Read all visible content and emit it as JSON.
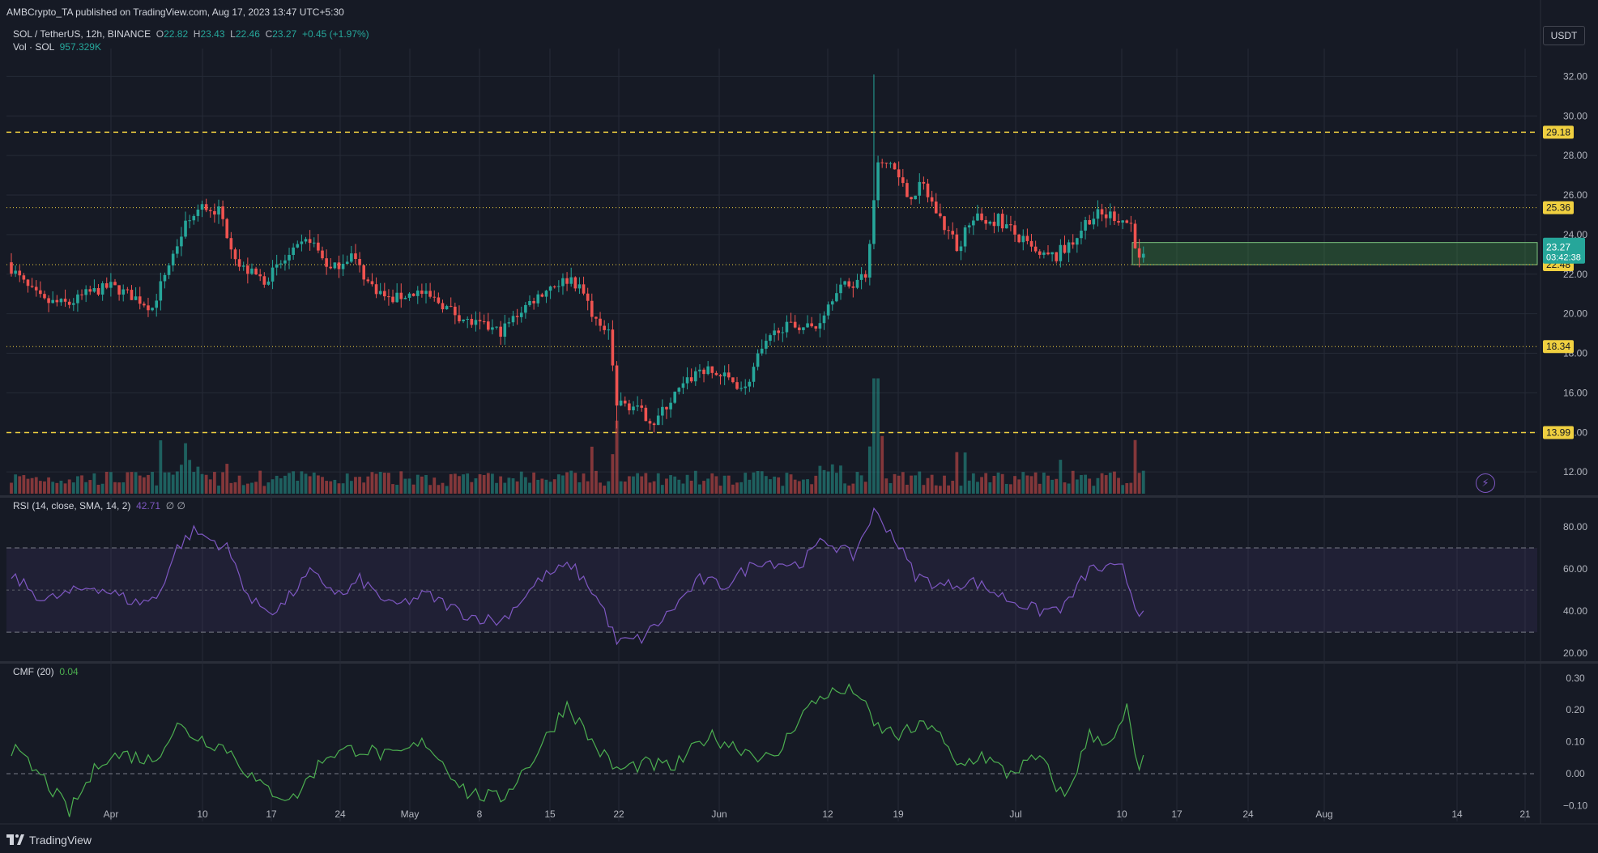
{
  "header": {
    "published": "AMBCrypto_TA published on TradingView.com, Aug 17, 2023 13:47 UTC+5:30",
    "pair": "SOL / TetherUS, 12h, BINANCE",
    "o_label": "O",
    "o": "22.82",
    "h_label": "H",
    "h": "23.43",
    "l_label": "L",
    "l": "22.46",
    "c_label": "C",
    "c": "23.27",
    "change": "+0.45 (+1.97%)",
    "vol_label": "Vol · SOL",
    "vol": "957.329K",
    "currency_button": "USDT"
  },
  "indicators": {
    "rsi_label": "RSI (14, close, SMA, 14, 2)",
    "rsi_value": "42.71",
    "rsi_extra": "∅ ∅",
    "cmf_label": "CMF (20)",
    "cmf_value": "0.04"
  },
  "footer": {
    "brand": "TradingView",
    "brand_icon": "tradingview-logo-icon"
  },
  "colors": {
    "bg": "#161a25",
    "up": "#26a69a",
    "down": "#ef5350",
    "level": "#f0d040",
    "rsi": "#7e57c2",
    "cmf": "#4caf50",
    "grid": "#252a36"
  },
  "chart_data": [
    {
      "type": "candlestick",
      "title": "SOL / TetherUS, 12h, BINANCE",
      "x_ticks": [
        "Apr",
        "10",
        "17",
        "24",
        "May",
        "8",
        "15",
        "22",
        "Jun",
        "12",
        "19",
        "Jul",
        "10",
        "17",
        "24",
        "Aug",
        "14",
        "21"
      ],
      "y_ticks": [
        12.0,
        14.0,
        16.0,
        18.0,
        20.0,
        22.0,
        24.0,
        26.0,
        28.0,
        30.0,
        32.0
      ],
      "y_tick_labels": [
        "12.00",
        "14.00",
        "16.00",
        "18.00",
        "20.00",
        "22.00",
        "24.00",
        "26.00",
        "28.00",
        "30.00",
        "32.00"
      ],
      "ylim": [
        10.9,
        33.0
      ],
      "start_date": "2023-03-23",
      "interval_hours": 12,
      "close_anchors": [
        {
          "i": 0,
          "c": 22.3
        },
        {
          "i": 4,
          "c": 21.3
        },
        {
          "i": 8,
          "c": 20.6
        },
        {
          "i": 14,
          "c": 20.5
        },
        {
          "i": 18,
          "c": 21.0
        },
        {
          "i": 24,
          "c": 21.4
        },
        {
          "i": 30,
          "c": 20.8
        },
        {
          "i": 34,
          "c": 20.3
        },
        {
          "i": 37,
          "c": 22.0
        },
        {
          "i": 42,
          "c": 24.5
        },
        {
          "i": 46,
          "c": 25.4
        },
        {
          "i": 50,
          "c": 25.2
        },
        {
          "i": 55,
          "c": 22.4
        },
        {
          "i": 61,
          "c": 21.7
        },
        {
          "i": 67,
          "c": 22.9
        },
        {
          "i": 72,
          "c": 23.8
        },
        {
          "i": 77,
          "c": 22.2
        },
        {
          "i": 82,
          "c": 23.0
        },
        {
          "i": 86,
          "c": 21.6
        },
        {
          "i": 91,
          "c": 20.7
        },
        {
          "i": 98,
          "c": 21.1
        },
        {
          "i": 103,
          "c": 20.6
        },
        {
          "i": 110,
          "c": 19.6
        },
        {
          "i": 118,
          "c": 19.1
        },
        {
          "i": 124,
          "c": 20.4
        },
        {
          "i": 130,
          "c": 21.4
        },
        {
          "i": 135,
          "c": 21.8
        },
        {
          "i": 138,
          "c": 21.0
        },
        {
          "i": 142,
          "c": 19.2
        },
        {
          "i": 144,
          "c": 19.0
        },
        {
          "i": 146,
          "c": 15.5
        },
        {
          "i": 150,
          "c": 15.3
        },
        {
          "i": 155,
          "c": 14.5
        },
        {
          "i": 160,
          "c": 15.9
        },
        {
          "i": 166,
          "c": 17.2
        },
        {
          "i": 172,
          "c": 16.8
        },
        {
          "i": 177,
          "c": 16.2
        },
        {
          "i": 180,
          "c": 17.8
        },
        {
          "i": 185,
          "c": 19.3
        },
        {
          "i": 190,
          "c": 19.4
        },
        {
          "i": 194,
          "c": 19.3
        },
        {
          "i": 199,
          "c": 21.3
        },
        {
          "i": 203,
          "c": 21.5
        },
        {
          "i": 206,
          "c": 22.1
        },
        {
          "i": 208,
          "c": 25.5
        },
        {
          "i": 209,
          "c": 27.3
        },
        {
          "i": 212,
          "c": 27.7
        },
        {
          "i": 216,
          "c": 26.0
        },
        {
          "i": 220,
          "c": 26.4
        },
        {
          "i": 224,
          "c": 24.8
        },
        {
          "i": 228,
          "c": 23.4
        },
        {
          "i": 232,
          "c": 24.7
        },
        {
          "i": 238,
          "c": 24.8
        },
        {
          "i": 243,
          "c": 23.8
        },
        {
          "i": 248,
          "c": 22.8
        },
        {
          "i": 252,
          "c": 22.9
        },
        {
          "i": 256,
          "c": 23.7
        },
        {
          "i": 260,
          "c": 24.9
        },
        {
          "i": 266,
          "c": 25.0
        },
        {
          "i": 270,
          "c": 24.5
        },
        {
          "i": 272,
          "c": 22.8
        },
        {
          "i": 273,
          "c": 23.27
        }
      ],
      "spike_high": {
        "i": 208,
        "h": 32.1
      },
      "levels": [
        {
          "value": 29.18,
          "label": "29.18",
          "style": "dashed"
        },
        {
          "value": 25.36,
          "label": "25.36",
          "style": "dotted"
        },
        {
          "value": 22.48,
          "label": "22.48",
          "style": "dotted"
        },
        {
          "value": 18.34,
          "label": "18.34",
          "style": "dotted"
        },
        {
          "value": 13.99,
          "label": "13.99",
          "style": "dashed"
        }
      ],
      "zone": {
        "from": 22.48,
        "to": 23.6,
        "color": "#4caf50"
      },
      "last_price": {
        "value": "23.27",
        "countdown": "03:42:38"
      }
    },
    {
      "type": "line",
      "name": "RSI (14, close, SMA, 14, 2)",
      "ylim": [
        17,
        90
      ],
      "y_ticks": [
        20,
        40,
        60,
        80
      ],
      "y_tick_labels": [
        "20.00",
        "40.00",
        "60.00",
        "80.00"
      ],
      "band": [
        30,
        70
      ],
      "mid": 50,
      "anchors": [
        {
          "i": 0,
          "v": 57
        },
        {
          "i": 8,
          "v": 45
        },
        {
          "i": 20,
          "v": 52
        },
        {
          "i": 30,
          "v": 44
        },
        {
          "i": 35,
          "v": 46
        },
        {
          "i": 40,
          "v": 70
        },
        {
          "i": 44,
          "v": 78
        },
        {
          "i": 52,
          "v": 70
        },
        {
          "i": 58,
          "v": 44
        },
        {
          "i": 64,
          "v": 40
        },
        {
          "i": 72,
          "v": 58
        },
        {
          "i": 80,
          "v": 47
        },
        {
          "i": 84,
          "v": 55
        },
        {
          "i": 92,
          "v": 42
        },
        {
          "i": 100,
          "v": 48
        },
        {
          "i": 110,
          "v": 38
        },
        {
          "i": 118,
          "v": 35
        },
        {
          "i": 128,
          "v": 56
        },
        {
          "i": 135,
          "v": 62
        },
        {
          "i": 140,
          "v": 50
        },
        {
          "i": 143,
          "v": 40
        },
        {
          "i": 146,
          "v": 25
        },
        {
          "i": 152,
          "v": 27
        },
        {
          "i": 158,
          "v": 38
        },
        {
          "i": 166,
          "v": 55
        },
        {
          "i": 172,
          "v": 52
        },
        {
          "i": 180,
          "v": 64
        },
        {
          "i": 190,
          "v": 62
        },
        {
          "i": 196,
          "v": 74
        },
        {
          "i": 203,
          "v": 66
        },
        {
          "i": 208,
          "v": 87
        },
        {
          "i": 212,
          "v": 78
        },
        {
          "i": 218,
          "v": 57
        },
        {
          "i": 224,
          "v": 52
        },
        {
          "i": 232,
          "v": 54
        },
        {
          "i": 240,
          "v": 46
        },
        {
          "i": 248,
          "v": 40
        },
        {
          "i": 254,
          "v": 42
        },
        {
          "i": 260,
          "v": 60
        },
        {
          "i": 268,
          "v": 60
        },
        {
          "i": 272,
          "v": 38
        },
        {
          "i": 273,
          "v": 42.71
        }
      ]
    },
    {
      "type": "line",
      "name": "CMF (20)",
      "ylim": [
        -0.15,
        0.32
      ],
      "y_ticks": [
        -0.1,
        0.0,
        0.1,
        0.2,
        0.3
      ],
      "y_tick_labels": [
        "−0.10",
        "0.00",
        "0.10",
        "0.20",
        "0.30"
      ],
      "zero_line": 0,
      "anchors": [
        {
          "i": 0,
          "v": 0.08
        },
        {
          "i": 8,
          "v": -0.02
        },
        {
          "i": 14,
          "v": -0.12
        },
        {
          "i": 22,
          "v": 0.05
        },
        {
          "i": 28,
          "v": 0.06
        },
        {
          "i": 34,
          "v": 0.04
        },
        {
          "i": 40,
          "v": 0.15
        },
        {
          "i": 44,
          "v": 0.12
        },
        {
          "i": 52,
          "v": 0.08
        },
        {
          "i": 60,
          "v": -0.04
        },
        {
          "i": 68,
          "v": -0.08
        },
        {
          "i": 76,
          "v": 0.06
        },
        {
          "i": 84,
          "v": 0.08
        },
        {
          "i": 92,
          "v": 0.05
        },
        {
          "i": 100,
          "v": 0.1
        },
        {
          "i": 110,
          "v": -0.06
        },
        {
          "i": 118,
          "v": -0.08
        },
        {
          "i": 126,
          "v": 0.05
        },
        {
          "i": 134,
          "v": 0.22
        },
        {
          "i": 140,
          "v": 0.1
        },
        {
          "i": 146,
          "v": 0.01
        },
        {
          "i": 152,
          "v": 0.03
        },
        {
          "i": 160,
          "v": 0.02
        },
        {
          "i": 168,
          "v": 0.12
        },
        {
          "i": 176,
          "v": 0.08
        },
        {
          "i": 184,
          "v": 0.04
        },
        {
          "i": 190,
          "v": 0.18
        },
        {
          "i": 196,
          "v": 0.25
        },
        {
          "i": 204,
          "v": 0.26
        },
        {
          "i": 208,
          "v": 0.15
        },
        {
          "i": 214,
          "v": 0.12
        },
        {
          "i": 222,
          "v": 0.16
        },
        {
          "i": 228,
          "v": 0.02
        },
        {
          "i": 234,
          "v": 0.06
        },
        {
          "i": 240,
          "v": 0.0
        },
        {
          "i": 248,
          "v": 0.05
        },
        {
          "i": 254,
          "v": -0.08
        },
        {
          "i": 260,
          "v": 0.12
        },
        {
          "i": 266,
          "v": 0.1
        },
        {
          "i": 269,
          "v": 0.2
        },
        {
          "i": 272,
          "v": 0.0
        },
        {
          "i": 273,
          "v": 0.04
        }
      ]
    }
  ]
}
